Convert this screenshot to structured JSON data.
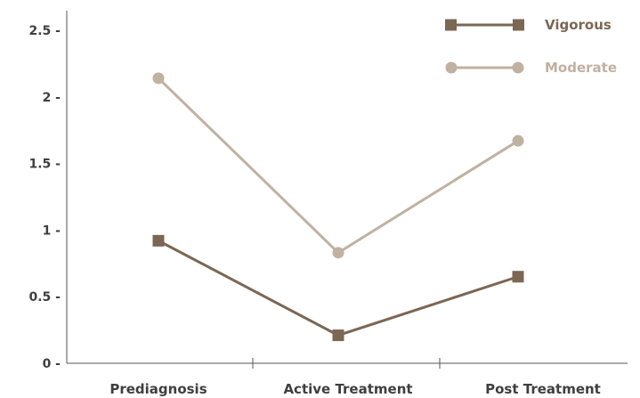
{
  "chart_data": {
    "type": "line",
    "title": "",
    "xlabel": "",
    "ylabel": "",
    "categories": [
      "Prediagnosis",
      "Active Treatment",
      "Post Treatment"
    ],
    "ylim": [
      0,
      2.5
    ],
    "yticks": [
      0,
      0.5,
      1,
      1.5,
      2,
      2.5
    ],
    "ytick_labels": [
      "0 -",
      "0.5 -",
      "1 -",
      "1.5 -",
      "2 -",
      "2.5 -"
    ],
    "grid": false,
    "legend_position": "top-right",
    "series": [
      {
        "name": "Vigorous",
        "values": [
          0.92,
          0.21,
          0.65
        ],
        "color": "#7b6753",
        "marker": "square"
      },
      {
        "name": "Moderate",
        "values": [
          2.14,
          0.83,
          1.67
        ],
        "color": "#c0b1a1",
        "marker": "circle"
      }
    ],
    "colors": {
      "axis": "#555555",
      "text": "#3f3f3f"
    }
  }
}
